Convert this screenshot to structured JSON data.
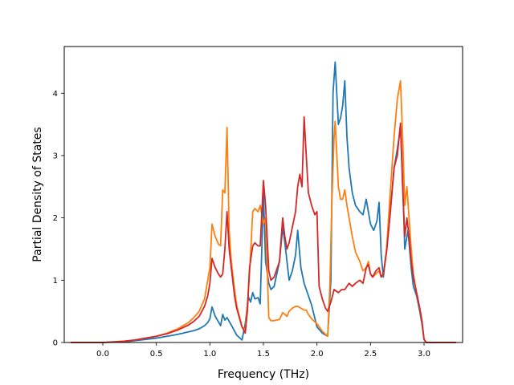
{
  "chart_data": {
    "type": "line",
    "title": "",
    "xlabel": "Frequency (THz)",
    "ylabel": "Partial Density of States",
    "xlim": [
      -0.36,
      3.36
    ],
    "ylim": [
      0,
      4.75
    ],
    "x_ticks": [
      0.0,
      0.5,
      1.0,
      1.5,
      2.0,
      2.5,
      3.0
    ],
    "x_tick_labels": [
      "0.0",
      "0.5",
      "1.0",
      "1.5",
      "2.0",
      "2.5",
      "3.0"
    ],
    "y_ticks": [
      0,
      1,
      2,
      3,
      4
    ],
    "y_tick_labels": [
      "0",
      "1",
      "2",
      "3",
      "4"
    ],
    "grid": false,
    "legend": "none",
    "series": [
      {
        "color": "#1f77b4",
        "points": [
          [
            -0.3,
            0
          ],
          [
            0,
            0
          ],
          [
            0.2,
            0.01
          ],
          [
            0.3,
            0.03
          ],
          [
            0.5,
            0.07
          ],
          [
            0.6,
            0.1
          ],
          [
            0.7,
            0.13
          ],
          [
            0.8,
            0.17
          ],
          [
            0.85,
            0.19
          ],
          [
            0.9,
            0.22
          ],
          [
            0.95,
            0.27
          ],
          [
            0.98,
            0.32
          ],
          [
            1.0,
            0.38
          ],
          [
            1.02,
            0.57
          ],
          [
            1.05,
            0.42
          ],
          [
            1.08,
            0.33
          ],
          [
            1.1,
            0.27
          ],
          [
            1.12,
            0.45
          ],
          [
            1.14,
            0.36
          ],
          [
            1.16,
            0.4
          ],
          [
            1.2,
            0.28
          ],
          [
            1.25,
            0.12
          ],
          [
            1.3,
            0.04
          ],
          [
            1.33,
            0.3
          ],
          [
            1.36,
            0.73
          ],
          [
            1.38,
            0.65
          ],
          [
            1.4,
            0.8
          ],
          [
            1.42,
            0.7
          ],
          [
            1.45,
            0.72
          ],
          [
            1.47,
            0.62
          ],
          [
            1.5,
            2.4
          ],
          [
            1.52,
            1.3
          ],
          [
            1.55,
            0.95
          ],
          [
            1.57,
            0.85
          ],
          [
            1.6,
            0.9
          ],
          [
            1.65,
            1.3
          ],
          [
            1.68,
            1.85
          ],
          [
            1.7,
            1.6
          ],
          [
            1.72,
            1.3
          ],
          [
            1.74,
            1.0
          ],
          [
            1.77,
            1.15
          ],
          [
            1.8,
            1.4
          ],
          [
            1.82,
            1.8
          ],
          [
            1.85,
            1.2
          ],
          [
            1.88,
            0.95
          ],
          [
            1.92,
            0.75
          ],
          [
            1.95,
            0.6
          ],
          [
            2.0,
            0.25
          ],
          [
            2.05,
            0.15
          ],
          [
            2.1,
            0.1
          ],
          [
            2.13,
            1.0
          ],
          [
            2.15,
            4.0
          ],
          [
            2.17,
            4.5
          ],
          [
            2.2,
            3.5
          ],
          [
            2.22,
            3.6
          ],
          [
            2.24,
            3.8
          ],
          [
            2.26,
            4.2
          ],
          [
            2.28,
            3.3
          ],
          [
            2.3,
            2.8
          ],
          [
            2.33,
            2.4
          ],
          [
            2.36,
            2.2
          ],
          [
            2.4,
            2.1
          ],
          [
            2.43,
            2.05
          ],
          [
            2.46,
            2.3
          ],
          [
            2.48,
            2.1
          ],
          [
            2.5,
            1.9
          ],
          [
            2.53,
            1.8
          ],
          [
            2.56,
            1.95
          ],
          [
            2.58,
            2.25
          ],
          [
            2.6,
            1.4
          ],
          [
            2.62,
            1.05
          ],
          [
            2.65,
            1.5
          ],
          [
            2.68,
            2.0
          ],
          [
            2.72,
            2.8
          ],
          [
            2.75,
            3.1
          ],
          [
            2.78,
            3.45
          ],
          [
            2.8,
            2.6
          ],
          [
            2.82,
            1.5
          ],
          [
            2.85,
            1.8
          ],
          [
            2.88,
            1.2
          ],
          [
            2.9,
            0.9
          ],
          [
            2.93,
            0.75
          ],
          [
            2.96,
            0.5
          ],
          [
            2.98,
            0.3
          ],
          [
            3.0,
            0.05
          ],
          [
            3.02,
            0
          ],
          [
            3.3,
            0
          ]
        ]
      },
      {
        "color": "#ff7f0e",
        "points": [
          [
            -0.3,
            0
          ],
          [
            0,
            0
          ],
          [
            0.2,
            0.02
          ],
          [
            0.3,
            0.04
          ],
          [
            0.5,
            0.1
          ],
          [
            0.6,
            0.15
          ],
          [
            0.7,
            0.22
          ],
          [
            0.8,
            0.32
          ],
          [
            0.85,
            0.4
          ],
          [
            0.9,
            0.5
          ],
          [
            0.95,
            0.7
          ],
          [
            0.98,
            1.0
          ],
          [
            1.0,
            1.2
          ],
          [
            1.02,
            1.9
          ],
          [
            1.05,
            1.7
          ],
          [
            1.08,
            1.58
          ],
          [
            1.1,
            1.55
          ],
          [
            1.12,
            2.45
          ],
          [
            1.14,
            2.4
          ],
          [
            1.16,
            3.45
          ],
          [
            1.18,
            1.8
          ],
          [
            1.2,
            1.3
          ],
          [
            1.23,
            0.85
          ],
          [
            1.25,
            0.6
          ],
          [
            1.3,
            0.25
          ],
          [
            1.33,
            0.2
          ],
          [
            1.35,
            0.6
          ],
          [
            1.37,
            1.1
          ],
          [
            1.4,
            2.1
          ],
          [
            1.42,
            2.15
          ],
          [
            1.45,
            2.1
          ],
          [
            1.47,
            2.2
          ],
          [
            1.5,
            1.9
          ],
          [
            1.52,
            2.0
          ],
          [
            1.55,
            0.4
          ],
          [
            1.57,
            0.35
          ],
          [
            1.6,
            0.35
          ],
          [
            1.65,
            0.37
          ],
          [
            1.68,
            0.48
          ],
          [
            1.7,
            0.45
          ],
          [
            1.72,
            0.42
          ],
          [
            1.74,
            0.5
          ],
          [
            1.77,
            0.55
          ],
          [
            1.8,
            0.58
          ],
          [
            1.82,
            0.58
          ],
          [
            1.85,
            0.55
          ],
          [
            1.88,
            0.52
          ],
          [
            1.9,
            0.52
          ],
          [
            1.92,
            0.45
          ],
          [
            1.95,
            0.38
          ],
          [
            2.0,
            0.3
          ],
          [
            2.05,
            0.18
          ],
          [
            2.1,
            0.1
          ],
          [
            2.12,
            0.9
          ],
          [
            2.14,
            2.3
          ],
          [
            2.16,
            3.3
          ],
          [
            2.17,
            3.55
          ],
          [
            2.2,
            2.5
          ],
          [
            2.22,
            2.3
          ],
          [
            2.24,
            2.3
          ],
          [
            2.26,
            2.45
          ],
          [
            2.28,
            2.2
          ],
          [
            2.3,
            2.0
          ],
          [
            2.33,
            1.7
          ],
          [
            2.36,
            1.45
          ],
          [
            2.4,
            1.3
          ],
          [
            2.43,
            1.15
          ],
          [
            2.46,
            1.2
          ],
          [
            2.48,
            1.3
          ],
          [
            2.5,
            1.1
          ],
          [
            2.52,
            1.05
          ],
          [
            2.55,
            1.1
          ],
          [
            2.58,
            1.15
          ],
          [
            2.6,
            1.05
          ],
          [
            2.62,
            1.1
          ],
          [
            2.65,
            1.5
          ],
          [
            2.68,
            2.3
          ],
          [
            2.72,
            3.3
          ],
          [
            2.75,
            3.9
          ],
          [
            2.78,
            4.2
          ],
          [
            2.8,
            3.3
          ],
          [
            2.82,
            2.2
          ],
          [
            2.84,
            2.5
          ],
          [
            2.86,
            2.0
          ],
          [
            2.88,
            1.5
          ],
          [
            2.9,
            1.1
          ],
          [
            2.93,
            0.8
          ],
          [
            2.96,
            0.55
          ],
          [
            2.98,
            0.35
          ],
          [
            3.0,
            0.05
          ],
          [
            3.02,
            0
          ],
          [
            3.3,
            0
          ]
        ]
      },
      {
        "color": "#d62728",
        "points": [
          [
            -0.3,
            0
          ],
          [
            0,
            0
          ],
          [
            0.2,
            0.02
          ],
          [
            0.3,
            0.04
          ],
          [
            0.5,
            0.1
          ],
          [
            0.6,
            0.14
          ],
          [
            0.7,
            0.2
          ],
          [
            0.8,
            0.28
          ],
          [
            0.85,
            0.34
          ],
          [
            0.9,
            0.42
          ],
          [
            0.95,
            0.58
          ],
          [
            0.98,
            0.75
          ],
          [
            1.0,
            0.95
          ],
          [
            1.02,
            1.35
          ],
          [
            1.05,
            1.2
          ],
          [
            1.08,
            1.1
          ],
          [
            1.1,
            1.05
          ],
          [
            1.12,
            1.1
          ],
          [
            1.14,
            1.5
          ],
          [
            1.16,
            2.1
          ],
          [
            1.18,
            1.5
          ],
          [
            1.2,
            1.2
          ],
          [
            1.23,
            0.75
          ],
          [
            1.25,
            0.55
          ],
          [
            1.3,
            0.25
          ],
          [
            1.33,
            0.15
          ],
          [
            1.35,
            0.5
          ],
          [
            1.37,
            1.2
          ],
          [
            1.4,
            1.55
          ],
          [
            1.42,
            1.6
          ],
          [
            1.45,
            1.55
          ],
          [
            1.47,
            1.55
          ],
          [
            1.5,
            2.6
          ],
          [
            1.52,
            2.2
          ],
          [
            1.55,
            1.15
          ],
          [
            1.57,
            1.0
          ],
          [
            1.6,
            1.05
          ],
          [
            1.65,
            1.3
          ],
          [
            1.68,
            2.0
          ],
          [
            1.7,
            1.7
          ],
          [
            1.72,
            1.5
          ],
          [
            1.74,
            1.6
          ],
          [
            1.77,
            1.85
          ],
          [
            1.8,
            2.1
          ],
          [
            1.82,
            2.5
          ],
          [
            1.84,
            2.7
          ],
          [
            1.86,
            2.5
          ],
          [
            1.88,
            3.62
          ],
          [
            1.9,
            3.0
          ],
          [
            1.92,
            2.4
          ],
          [
            1.95,
            2.2
          ],
          [
            1.98,
            2.05
          ],
          [
            2.0,
            2.1
          ],
          [
            2.02,
            0.9
          ],
          [
            2.05,
            0.7
          ],
          [
            2.08,
            0.55
          ],
          [
            2.1,
            0.5
          ],
          [
            2.13,
            0.65
          ],
          [
            2.16,
            0.85
          ],
          [
            2.2,
            0.8
          ],
          [
            2.23,
            0.85
          ],
          [
            2.26,
            0.85
          ],
          [
            2.3,
            0.95
          ],
          [
            2.33,
            0.9
          ],
          [
            2.36,
            0.95
          ],
          [
            2.4,
            1.0
          ],
          [
            2.43,
            0.95
          ],
          [
            2.46,
            1.2
          ],
          [
            2.48,
            1.25
          ],
          [
            2.5,
            1.1
          ],
          [
            2.52,
            1.05
          ],
          [
            2.55,
            1.15
          ],
          [
            2.58,
            1.2
          ],
          [
            2.6,
            1.05
          ],
          [
            2.62,
            1.1
          ],
          [
            2.65,
            1.45
          ],
          [
            2.68,
            2.0
          ],
          [
            2.72,
            2.8
          ],
          [
            2.75,
            3.0
          ],
          [
            2.78,
            3.52
          ],
          [
            2.8,
            2.5
          ],
          [
            2.82,
            1.7
          ],
          [
            2.84,
            2.0
          ],
          [
            2.86,
            1.7
          ],
          [
            2.88,
            1.3
          ],
          [
            2.9,
            1.05
          ],
          [
            2.93,
            0.8
          ],
          [
            2.96,
            0.55
          ],
          [
            2.98,
            0.35
          ],
          [
            3.0,
            0.05
          ],
          [
            3.02,
            0
          ],
          [
            3.3,
            0
          ]
        ]
      }
    ]
  }
}
